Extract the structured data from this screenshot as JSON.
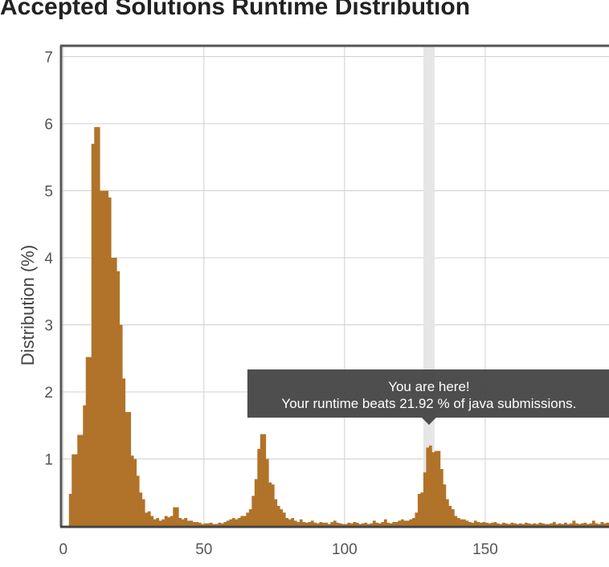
{
  "chart_data": {
    "type": "histogram",
    "title": "Accepted Solutions Runtime Distribution",
    "y_label": "Distribution (%)",
    "color": "#b07329",
    "bins": [
      2,
      3,
      4,
      5,
      6,
      7,
      8,
      9,
      10,
      11,
      12,
      13,
      14,
      15,
      16,
      17,
      18,
      19,
      20,
      21,
      22,
      23,
      24,
      25,
      26,
      27,
      28,
      29,
      30,
      31,
      32,
      33,
      34,
      35,
      36,
      37,
      38,
      39,
      40,
      41,
      42,
      43,
      44,
      45,
      46,
      47,
      48,
      49,
      50,
      51,
      52,
      53,
      54,
      55,
      56,
      57,
      58,
      59,
      60,
      61,
      62,
      63,
      64,
      65,
      66,
      67,
      68,
      69,
      70,
      71,
      72,
      73,
      74,
      75,
      76,
      77,
      78,
      79,
      80,
      81,
      82,
      83,
      84,
      85,
      86,
      87,
      88,
      89,
      90,
      91,
      92,
      93,
      94,
      95,
      96,
      97,
      98,
      99,
      100,
      101,
      102,
      103,
      104,
      105,
      106,
      107,
      108,
      109,
      110,
      111,
      112,
      113,
      114,
      115,
      116,
      117,
      118,
      119,
      120,
      121,
      122,
      123,
      124,
      125,
      126,
      127,
      128,
      129,
      130,
      131,
      132,
      133,
      134,
      135,
      136,
      137,
      138,
      139,
      140,
      141,
      142,
      143,
      144,
      145,
      146,
      147,
      148,
      149,
      150,
      151,
      152,
      153,
      154,
      155,
      156,
      157,
      158,
      159,
      160,
      161,
      162,
      163,
      164,
      165,
      166,
      167,
      168,
      169,
      170,
      171,
      172,
      173,
      174,
      175,
      176,
      177,
      178,
      179,
      180,
      181,
      182,
      183,
      184,
      185,
      186,
      187,
      188,
      189,
      190,
      191,
      192,
      193,
      194
    ],
    "values": [
      0.48,
      1.07,
      1.07,
      1.36,
      1.36,
      1.8,
      2.52,
      2.52,
      5.7,
      5.95,
      5.95,
      5.0,
      5.0,
      5.0,
      4.9,
      4.0,
      4.0,
      3.8,
      3.0,
      2.2,
      1.7,
      1.7,
      1.05,
      1.0,
      0.75,
      0.5,
      0.4,
      0.2,
      0.22,
      0.15,
      0.1,
      0.12,
      0.08,
      0.1,
      0.15,
      0.13,
      0.15,
      0.28,
      0.28,
      0.12,
      0.1,
      0.12,
      0.08,
      0.08,
      0.06,
      0.06,
      0.05,
      0.03,
      0.04,
      0.04,
      0.05,
      0.03,
      0.03,
      0.05,
      0.04,
      0.06,
      0.08,
      0.1,
      0.12,
      0.1,
      0.12,
      0.15,
      0.15,
      0.2,
      0.25,
      0.45,
      0.7,
      1.15,
      1.37,
      1.37,
      1.0,
      0.65,
      0.62,
      0.4,
      0.3,
      0.25,
      0.2,
      0.12,
      0.1,
      0.12,
      0.08,
      0.06,
      0.1,
      0.06,
      0.05,
      0.06,
      0.08,
      0.05,
      0.04,
      0.06,
      0.05,
      0.05,
      0.03,
      0.06,
      0.08,
      0.05,
      0.04,
      0.03,
      0.03,
      0.05,
      0.04,
      0.06,
      0.05,
      0.03,
      0.04,
      0.05,
      0.03,
      0.04,
      0.08,
      0.05,
      0.04,
      0.06,
      0.1,
      0.05,
      0.04,
      0.06,
      0.06,
      0.08,
      0.1,
      0.08,
      0.08,
      0.1,
      0.12,
      0.2,
      0.48,
      0.5,
      0.8,
      1.17,
      1.2,
      1.1,
      1.12,
      1.12,
      0.85,
      0.62,
      0.4,
      0.3,
      0.25,
      0.15,
      0.12,
      0.1,
      0.1,
      0.08,
      0.06,
      0.05,
      0.08,
      0.06,
      0.05,
      0.06,
      0.05,
      0.04,
      0.05,
      0.06,
      0.04,
      0.03,
      0.05,
      0.04,
      0.03,
      0.05,
      0.04,
      0.03,
      0.04,
      0.03,
      0.05,
      0.04,
      0.03,
      0.04,
      0.03,
      0.05,
      0.04,
      0.03,
      0.03,
      0.04,
      0.06,
      0.03,
      0.04,
      0.03,
      0.05,
      0.03,
      0.04,
      0.08,
      0.04,
      0.03,
      0.04,
      0.05,
      0.03,
      0.04,
      0.08,
      0.04,
      0.03,
      0.06,
      0.04,
      0.05
    ],
    "xlim": [
      -0.5,
      194
    ],
    "ylim": [
      0,
      7.15
    ],
    "xticks": [
      0,
      50,
      100,
      150
    ],
    "yticks": [
      1,
      2,
      3,
      4,
      5,
      6,
      7
    ],
    "grid": true,
    "highlight": [
      128,
      132
    ],
    "annotation": {
      "title": "You are here!",
      "text": "Your runtime beats 21.92 % of java submissions."
    }
  }
}
